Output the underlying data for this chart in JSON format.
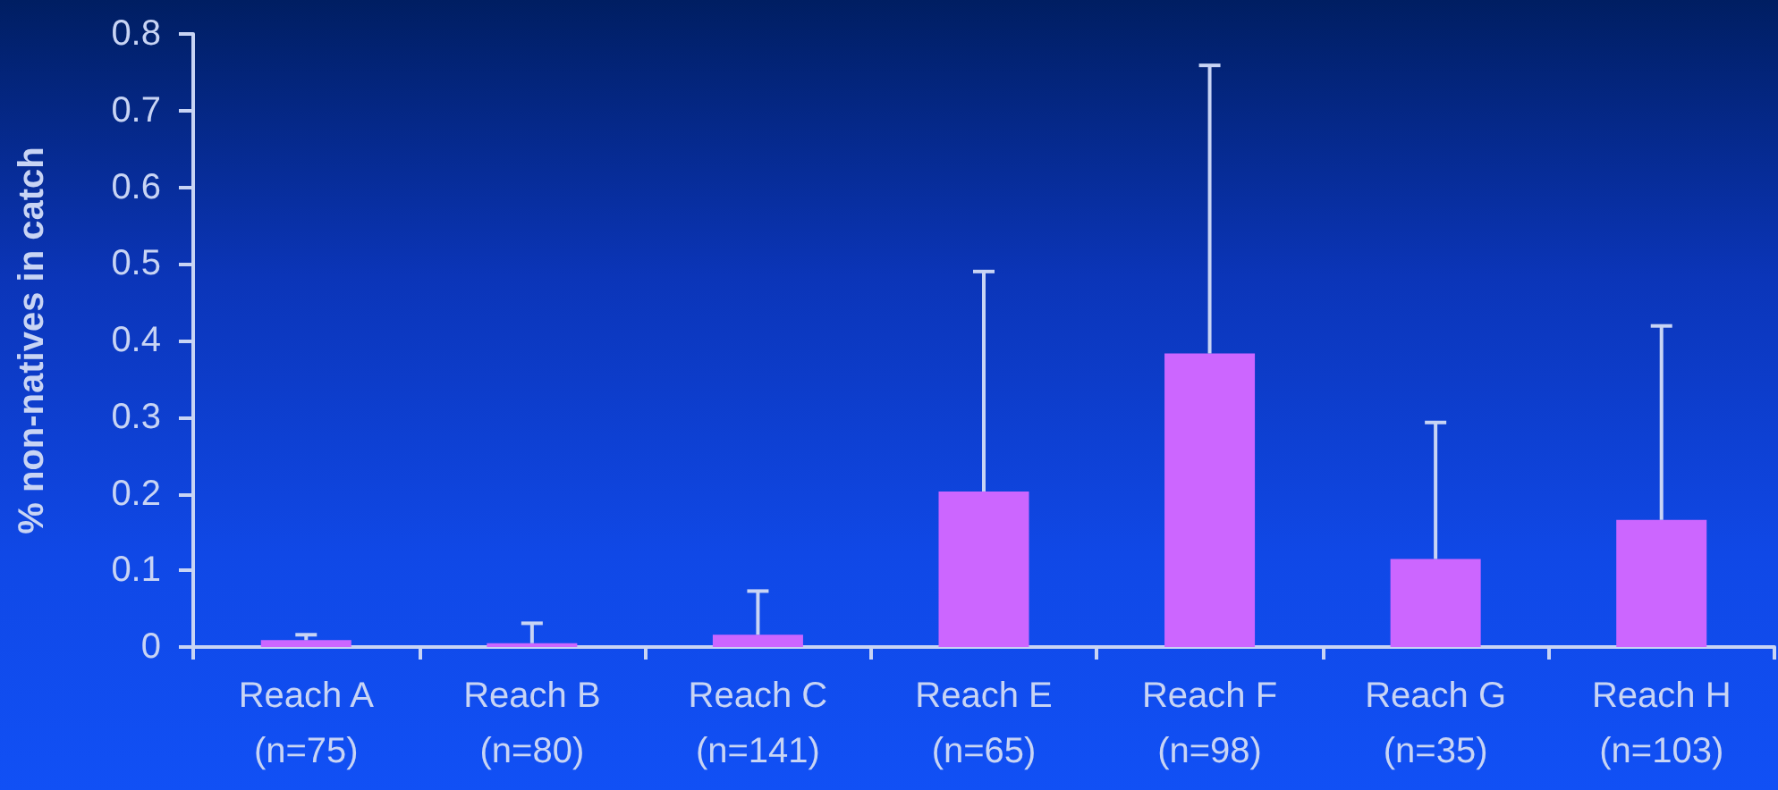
{
  "chart_data": {
    "type": "bar",
    "ylabel": "% non-natives in catch",
    "categories": [
      "Reach A\n(n=75)",
      "Reach B\n(n=80)",
      "Reach C\n(n=141)",
      "Reach E\n(n=65)",
      "Reach F\n(n=98)",
      "Reach G\n(n=35)",
      "Reach H\n(n=103)"
    ],
    "values": [
      0.009,
      0.005,
      0.016,
      0.203,
      0.383,
      0.115,
      0.166
    ],
    "errors": [
      [
        0.009,
        0.016
      ],
      [
        0.005,
        0.031
      ],
      [
        0.016,
        0.073
      ],
      [
        0.203,
        0.49
      ],
      [
        0.383,
        0.759
      ],
      [
        0.115,
        0.293
      ],
      [
        0.166,
        0.419
      ]
    ],
    "color": "#cc66ff",
    "ylim": [
      0,
      0.8
    ],
    "yticks": [
      0,
      0.1,
      0.2,
      0.3,
      0.4,
      0.5,
      0.6,
      0.7,
      0.8
    ],
    "grid": false
  }
}
